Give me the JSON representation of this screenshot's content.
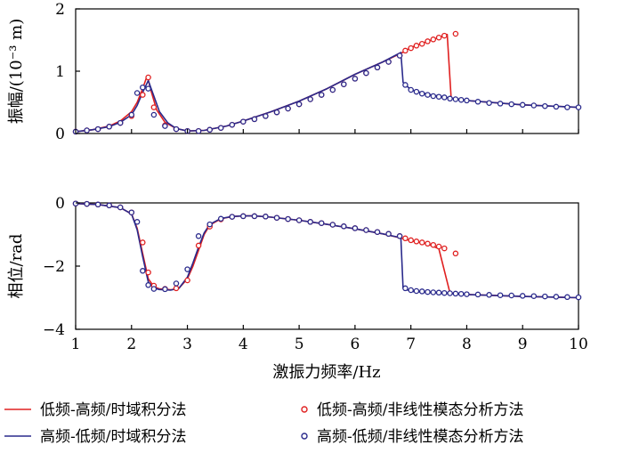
{
  "chart_data": [
    {
      "type": "line",
      "ylabel": "振幅/(10⁻³ m)",
      "xlim": [
        1,
        10
      ],
      "ylim": [
        0,
        2
      ],
      "yticks": [
        "0",
        "1",
        "2"
      ],
      "grid": false,
      "series": [
        {
          "name": "低频-高频/时域积分法",
          "color": "#e02020",
          "style": "line",
          "x": [
            1,
            1.3,
            1.6,
            1.8,
            2.0,
            2.1,
            2.2,
            2.28,
            2.35,
            2.45,
            2.6,
            2.8,
            3.0,
            3.3,
            3.7,
            4.0,
            4.5,
            5.0,
            5.5,
            6.0,
            6.5,
            6.85,
            7.0,
            7.3,
            7.6,
            7.65,
            7.72,
            8.0,
            9.0,
            10.0
          ],
          "y": [
            0.03,
            0.06,
            0.12,
            0.2,
            0.35,
            0.5,
            0.72,
            0.93,
            0.68,
            0.38,
            0.18,
            0.08,
            0.04,
            0.05,
            0.12,
            0.2,
            0.35,
            0.52,
            0.72,
            0.95,
            1.15,
            1.3,
            1.38,
            1.48,
            1.57,
            1.59,
            0.57,
            0.53,
            0.46,
            0.42
          ]
        },
        {
          "name": "高频-低频/时域积分法",
          "color": "#2a2a8c",
          "style": "line",
          "x": [
            1,
            1.3,
            1.6,
            1.8,
            2.0,
            2.1,
            2.2,
            2.3,
            2.4,
            2.5,
            2.65,
            2.8,
            3.0,
            3.3,
            3.7,
            4.0,
            4.5,
            5.0,
            5.5,
            6.0,
            6.5,
            6.82,
            6.86,
            7.0,
            7.3,
            7.7,
            8.0,
            9.0,
            10.0
          ],
          "y": [
            0.03,
            0.06,
            0.11,
            0.18,
            0.3,
            0.45,
            0.66,
            0.85,
            0.6,
            0.35,
            0.17,
            0.08,
            0.04,
            0.05,
            0.12,
            0.2,
            0.35,
            0.52,
            0.72,
            0.95,
            1.15,
            1.3,
            0.82,
            0.7,
            0.63,
            0.57,
            0.53,
            0.46,
            0.42
          ]
        },
        {
          "name": "低频-高频/非线性模态分析方法",
          "color": "#e02020",
          "style": "marker",
          "x": [
            1.0,
            1.2,
            1.4,
            1.6,
            1.8,
            2.0,
            2.2,
            2.3,
            2.4,
            2.6,
            2.8,
            3.0,
            3.2,
            3.4,
            3.6,
            3.8,
            4.0,
            4.2,
            4.4,
            4.6,
            4.8,
            5.0,
            5.2,
            5.4,
            5.6,
            5.8,
            6.0,
            6.2,
            6.4,
            6.6,
            6.8,
            6.9,
            7.0,
            7.1,
            7.2,
            7.3,
            7.4,
            7.5,
            7.6,
            7.8
          ],
          "y": [
            0.03,
            0.05,
            0.07,
            0.11,
            0.17,
            0.28,
            0.62,
            0.9,
            0.42,
            0.13,
            0.07,
            0.04,
            0.04,
            0.06,
            0.09,
            0.14,
            0.19,
            0.23,
            0.28,
            0.34,
            0.4,
            0.47,
            0.55,
            0.62,
            0.7,
            0.79,
            0.88,
            0.97,
            1.06,
            1.15,
            1.25,
            1.33,
            1.37,
            1.41,
            1.44,
            1.48,
            1.51,
            1.54,
            1.57,
            1.6
          ]
        },
        {
          "name": "高频-低频/非线性模态分析方法",
          "color": "#2a2a8c",
          "style": "marker",
          "x": [
            1.0,
            1.2,
            1.4,
            1.6,
            1.8,
            2.0,
            2.1,
            2.2,
            2.3,
            2.4,
            2.6,
            2.8,
            3.0,
            3.2,
            3.4,
            3.6,
            3.8,
            4.0,
            4.2,
            4.4,
            4.6,
            4.8,
            5.0,
            5.2,
            5.4,
            5.6,
            5.8,
            6.0,
            6.2,
            6.4,
            6.6,
            6.8,
            6.9,
            7.0,
            7.1,
            7.2,
            7.3,
            7.4,
            7.5,
            7.6,
            7.7,
            7.8,
            7.9,
            8.0,
            8.2,
            8.4,
            8.6,
            8.8,
            9.0,
            9.2,
            9.4,
            9.6,
            9.8,
            10.0
          ],
          "y": [
            0.03,
            0.05,
            0.07,
            0.11,
            0.17,
            0.3,
            0.65,
            0.74,
            0.72,
            0.3,
            0.12,
            0.07,
            0.04,
            0.04,
            0.06,
            0.09,
            0.14,
            0.19,
            0.23,
            0.28,
            0.34,
            0.4,
            0.47,
            0.55,
            0.62,
            0.7,
            0.79,
            0.88,
            0.97,
            1.06,
            1.15,
            1.25,
            0.78,
            0.7,
            0.67,
            0.64,
            0.62,
            0.6,
            0.59,
            0.58,
            0.56,
            0.55,
            0.54,
            0.53,
            0.51,
            0.49,
            0.48,
            0.47,
            0.46,
            0.45,
            0.44,
            0.43,
            0.42,
            0.42
          ]
        }
      ]
    },
    {
      "type": "line",
      "xlabel": "激振力频率/Hz",
      "ylabel": "相位/rad",
      "xlim": [
        1,
        10
      ],
      "ylim": [
        -4,
        0
      ],
      "xticks": [
        "1",
        "2",
        "3",
        "4",
        "5",
        "6",
        "7",
        "8",
        "9",
        "10"
      ],
      "yticks": [
        "0",
        "−2",
        "−4"
      ],
      "grid": false,
      "series": [
        {
          "name": "低频-高频/时域积分法",
          "color": "#e02020",
          "style": "line",
          "x": [
            1,
            1.4,
            1.8,
            2.0,
            2.1,
            2.2,
            2.3,
            2.4,
            2.5,
            2.7,
            2.85,
            3.0,
            3.1,
            3.2,
            3.3,
            3.4,
            3.6,
            3.8,
            4.0,
            4.2,
            4.5,
            5.0,
            5.5,
            6.0,
            6.5,
            6.8,
            7.0,
            7.3,
            7.5,
            7.7,
            8.0,
            9.0,
            10.0
          ],
          "y": [
            -0.02,
            -0.05,
            -0.15,
            -0.35,
            -0.8,
            -1.6,
            -2.4,
            -2.65,
            -2.72,
            -2.75,
            -2.7,
            -2.4,
            -2.0,
            -1.5,
            -1.0,
            -0.7,
            -0.5,
            -0.43,
            -0.41,
            -0.41,
            -0.45,
            -0.55,
            -0.68,
            -0.82,
            -0.98,
            -1.1,
            -1.2,
            -1.3,
            -1.45,
            -2.85,
            -2.9,
            -2.96,
            -3.0
          ]
        },
        {
          "name": "高频-低频/时域积分法",
          "color": "#2a2a8c",
          "style": "line",
          "x": [
            1,
            1.4,
            1.8,
            2.0,
            2.1,
            2.2,
            2.3,
            2.4,
            2.5,
            2.7,
            2.85,
            3.0,
            3.1,
            3.2,
            3.3,
            3.4,
            3.6,
            3.8,
            4.0,
            4.2,
            4.5,
            5.0,
            5.5,
            6.0,
            6.5,
            6.82,
            6.86,
            7.0,
            7.5,
            8.0,
            9.0,
            10.0
          ],
          "y": [
            -0.02,
            -0.05,
            -0.15,
            -0.35,
            -0.85,
            -1.7,
            -2.5,
            -2.7,
            -2.74,
            -2.76,
            -2.7,
            -2.35,
            -1.9,
            -1.4,
            -0.95,
            -0.68,
            -0.49,
            -0.43,
            -0.41,
            -0.41,
            -0.45,
            -0.55,
            -0.68,
            -0.82,
            -0.98,
            -1.1,
            -2.7,
            -2.8,
            -2.86,
            -2.9,
            -2.96,
            -3.0
          ]
        },
        {
          "name": "低频-高频/非线性模态分析方法",
          "color": "#e02020",
          "style": "marker",
          "x": [
            1.0,
            1.2,
            1.4,
            1.6,
            1.8,
            2.0,
            2.2,
            2.3,
            2.4,
            2.6,
            2.8,
            3.0,
            3.2,
            3.4,
            3.6,
            3.8,
            4.0,
            4.2,
            4.4,
            4.6,
            4.8,
            5.0,
            5.2,
            5.4,
            5.6,
            5.8,
            6.0,
            6.2,
            6.4,
            6.6,
            6.8,
            6.9,
            7.0,
            7.1,
            7.2,
            7.3,
            7.4,
            7.5,
            7.6,
            7.8
          ],
          "y": [
            -0.02,
            -0.03,
            -0.05,
            -0.08,
            -0.14,
            -0.3,
            -1.25,
            -2.2,
            -2.62,
            -2.72,
            -2.7,
            -2.45,
            -1.35,
            -0.75,
            -0.52,
            -0.44,
            -0.42,
            -0.42,
            -0.43,
            -0.47,
            -0.51,
            -0.55,
            -0.6,
            -0.64,
            -0.69,
            -0.74,
            -0.8,
            -0.86,
            -0.92,
            -0.98,
            -1.05,
            -1.12,
            -1.18,
            -1.22,
            -1.25,
            -1.29,
            -1.33,
            -1.38,
            -1.44,
            -1.6
          ]
        },
        {
          "name": "高频-低频/非线性模态分析方法",
          "color": "#2a2a8c",
          "style": "marker",
          "x": [
            1.0,
            1.2,
            1.4,
            1.6,
            1.8,
            2.0,
            2.1,
            2.2,
            2.3,
            2.4,
            2.6,
            2.8,
            3.0,
            3.2,
            3.4,
            3.6,
            3.8,
            4.0,
            4.2,
            4.4,
            4.6,
            4.8,
            5.0,
            5.2,
            5.4,
            5.6,
            5.8,
            6.0,
            6.2,
            6.4,
            6.6,
            6.8,
            6.9,
            7.0,
            7.1,
            7.2,
            7.3,
            7.4,
            7.5,
            7.6,
            7.7,
            7.8,
            7.9,
            8.0,
            8.2,
            8.4,
            8.6,
            8.8,
            9.0,
            9.2,
            9.4,
            9.6,
            9.8,
            10.0
          ],
          "y": [
            -0.02,
            -0.03,
            -0.05,
            -0.08,
            -0.14,
            -0.3,
            -0.6,
            -2.15,
            -2.6,
            -2.72,
            -2.73,
            -2.55,
            -2.1,
            -1.05,
            -0.68,
            -0.5,
            -0.44,
            -0.42,
            -0.42,
            -0.43,
            -0.47,
            -0.51,
            -0.55,
            -0.6,
            -0.64,
            -0.69,
            -0.74,
            -0.8,
            -0.86,
            -0.92,
            -0.98,
            -1.05,
            -2.7,
            -2.76,
            -2.79,
            -2.8,
            -2.82,
            -2.83,
            -2.84,
            -2.85,
            -2.86,
            -2.87,
            -2.88,
            -2.89,
            -2.9,
            -2.91,
            -2.92,
            -2.93,
            -2.94,
            -2.95,
            -2.96,
            -2.97,
            -2.98,
            -2.99
          ]
        }
      ]
    }
  ]
}
